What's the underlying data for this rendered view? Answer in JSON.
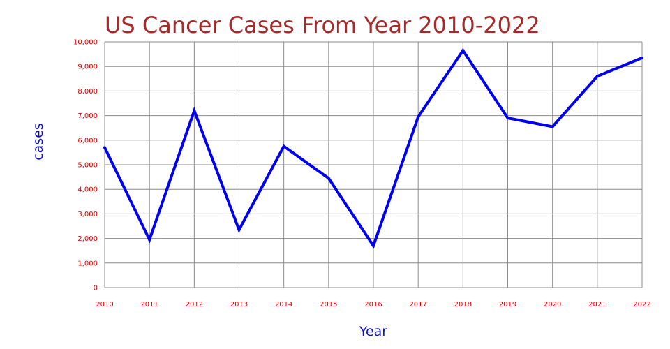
{
  "chart_data": {
    "type": "line",
    "title": "US Cancer Cases From Year 2010-2022",
    "xlabel": "Year",
    "ylabel": "cases",
    "x": [
      "2010",
      "2011",
      "2012",
      "2013",
      "2014",
      "2015",
      "2016",
      "2017",
      "2018",
      "2019",
      "2020",
      "2021",
      "2022"
    ],
    "series": [
      {
        "values": [
          5700,
          1950,
          7200,
          2350,
          5750,
          4450,
          1700,
          6950,
          9650,
          6900,
          6550,
          8600,
          9350
        ]
      }
    ],
    "ylim": [
      0,
      10000
    ],
    "yticks": [
      "0",
      "1,000",
      "2,000",
      "3,000",
      "4,000",
      "5,000",
      "6,000",
      "7,000",
      "8,000",
      "9,000",
      "10,000"
    ],
    "grid": true,
    "colors": {
      "line": "#0000ee",
      "grid": "#8c8c8c",
      "tick_labels": "#e00000",
      "title": "#a52a2a",
      "axis_titles": "#1010cc"
    }
  }
}
